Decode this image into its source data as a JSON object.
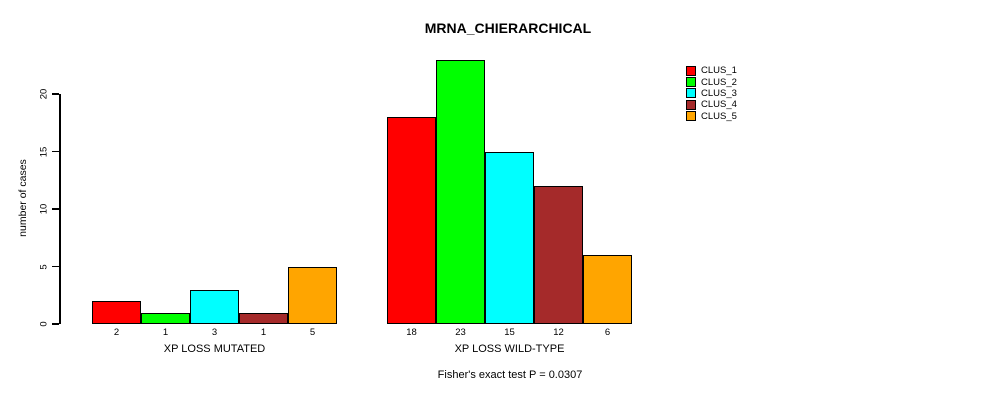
{
  "chart_data": {
    "type": "bar",
    "title": "MRNA_CHIERARCHICAL",
    "ylabel": "number of cases",
    "ylim": [
      0,
      23
    ],
    "yticks": [
      0,
      5,
      10,
      15,
      20
    ],
    "grid": false,
    "legend_position": "top-right",
    "categories": [
      "XP LOSS MUTATED",
      "XP LOSS WILD-TYPE"
    ],
    "series": [
      {
        "name": "CLUS_1",
        "color": "#ff0000",
        "values": [
          2,
          18
        ]
      },
      {
        "name": "CLUS_2",
        "color": "#00ff00",
        "values": [
          1,
          23
        ]
      },
      {
        "name": "CLUS_3",
        "color": "#00ffff",
        "values": [
          3,
          15
        ]
      },
      {
        "name": "CLUS_4",
        "color": "#a52a2a",
        "values": [
          1,
          12
        ]
      },
      {
        "name": "CLUS_5",
        "color": "#ffa500",
        "values": [
          5,
          6
        ]
      }
    ],
    "annotation": "Fisher's exact test P = 0.0307"
  }
}
